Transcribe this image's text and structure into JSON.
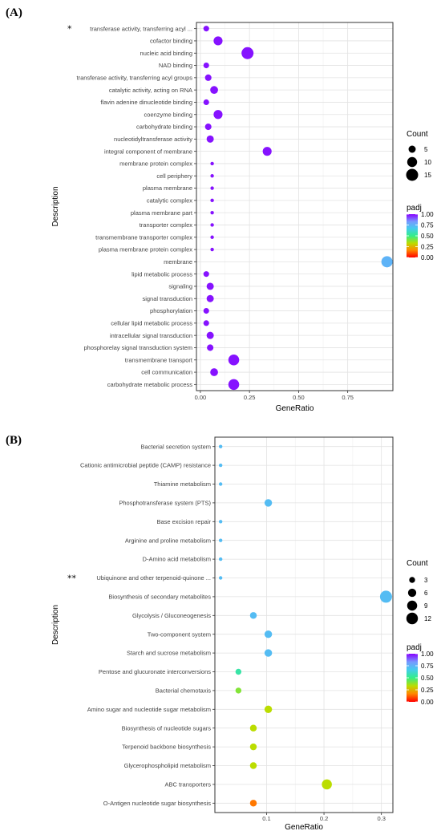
{
  "chart_data": [
    {
      "panel_label": "(A)",
      "type": "scatter",
      "xlabel": "GeneRatio",
      "ylabel": "Description",
      "xlim": [
        -0.02,
        0.98
      ],
      "xticks": [
        0.0,
        0.25,
        0.5,
        0.75
      ],
      "xtick_labels": [
        "0.00",
        "0.25",
        "0.50",
        "0.75"
      ],
      "grid": true,
      "legend_position": "right",
      "size_legend": {
        "title": "Count",
        "values": [
          5,
          10,
          15
        ],
        "labels": [
          "5",
          "10",
          "15"
        ]
      },
      "color_legend": {
        "title": "padj",
        "range": [
          0,
          1
        ],
        "tick_values": [
          1.0,
          0.75,
          0.5,
          0.25,
          0.0
        ],
        "tick_labels": [
          "1.00",
          "0.75",
          "0.50",
          "0.25",
          "0.00"
        ]
      },
      "points": [
        {
          "label": "transferase activity, transferring acyl ...",
          "marker": "*",
          "x": 0.03,
          "count": 3,
          "padj": 0.98
        },
        {
          "label": "cofactor binding",
          "marker": "",
          "x": 0.09,
          "count": 8,
          "padj": 0.98
        },
        {
          "label": "nucleic acid binding",
          "marker": "",
          "x": 0.24,
          "count": 15,
          "padj": 0.98
        },
        {
          "label": "NAD binding",
          "marker": "",
          "x": 0.03,
          "count": 3,
          "padj": 0.98
        },
        {
          "label": "transferase activity, transferring acyl groups",
          "marker": "",
          "x": 0.04,
          "count": 4,
          "padj": 0.98
        },
        {
          "label": "catalytic activity, acting on RNA",
          "marker": "",
          "x": 0.07,
          "count": 6,
          "padj": 0.98
        },
        {
          "label": "flavin adenine dinucleotide binding",
          "marker": "",
          "x": 0.03,
          "count": 3,
          "padj": 0.98
        },
        {
          "label": "coenzyme binding",
          "marker": "",
          "x": 0.09,
          "count": 8,
          "padj": 0.98
        },
        {
          "label": "carbohydrate binding",
          "marker": "",
          "x": 0.04,
          "count": 4,
          "padj": 0.98
        },
        {
          "label": "nucleotidyltransferase activity",
          "marker": "",
          "x": 0.05,
          "count": 5,
          "padj": 0.98
        },
        {
          "label": "integral component of membrane",
          "marker": "",
          "x": 0.34,
          "count": 8,
          "padj": 0.98
        },
        {
          "label": "membrane protein complex",
          "marker": "",
          "x": 0.06,
          "count": 1,
          "padj": 0.98
        },
        {
          "label": "cell periphery",
          "marker": "",
          "x": 0.06,
          "count": 1,
          "padj": 0.98
        },
        {
          "label": "plasma membrane",
          "marker": "",
          "x": 0.06,
          "count": 1,
          "padj": 0.98
        },
        {
          "label": "catalytic complex",
          "marker": "",
          "x": 0.06,
          "count": 1,
          "padj": 0.98
        },
        {
          "label": "plasma membrane part",
          "marker": "",
          "x": 0.06,
          "count": 1,
          "padj": 0.98
        },
        {
          "label": "transporter complex",
          "marker": "",
          "x": 0.06,
          "count": 1,
          "padj": 0.98
        },
        {
          "label": "transmembrane transporter complex",
          "marker": "",
          "x": 0.06,
          "count": 1,
          "padj": 0.98
        },
        {
          "label": "plasma membrane protein complex",
          "marker": "",
          "x": 0.06,
          "count": 1,
          "padj": 0.98
        },
        {
          "label": "membrane",
          "marker": "",
          "x": 0.95,
          "count": 13,
          "padj": 0.75
        },
        {
          "label": "lipid metabolic process",
          "marker": "",
          "x": 0.03,
          "count": 3,
          "padj": 0.98
        },
        {
          "label": "signaling",
          "marker": "",
          "x": 0.05,
          "count": 5,
          "padj": 0.98
        },
        {
          "label": "signal transduction",
          "marker": "",
          "x": 0.05,
          "count": 5,
          "padj": 0.98
        },
        {
          "label": "phosphorylation",
          "marker": "",
          "x": 0.03,
          "count": 3,
          "padj": 0.98
        },
        {
          "label": "cellular lipid metabolic process",
          "marker": "",
          "x": 0.03,
          "count": 3,
          "padj": 0.98
        },
        {
          "label": "intracellular signal transduction",
          "marker": "",
          "x": 0.05,
          "count": 5,
          "padj": 0.98
        },
        {
          "label": "phosphorelay signal transduction system",
          "marker": "",
          "x": 0.05,
          "count": 4,
          "padj": 0.98
        },
        {
          "label": "transmembrane transport",
          "marker": "",
          "x": 0.17,
          "count": 12,
          "padj": 0.98
        },
        {
          "label": "cell communication",
          "marker": "",
          "x": 0.07,
          "count": 6,
          "padj": 0.98
        },
        {
          "label": "carbohydrate metabolic process",
          "marker": "",
          "x": 0.17,
          "count": 12,
          "padj": 0.98
        }
      ]
    },
    {
      "panel_label": "(B)",
      "type": "scatter",
      "xlabel": "GeneRatio",
      "ylabel": "Description",
      "xlim": [
        0.01,
        0.32
      ],
      "xticks": [
        0.1,
        0.2,
        0.3
      ],
      "xtick_labels": [
        "0.1",
        "0.2",
        "0.3"
      ],
      "grid": true,
      "legend_position": "right",
      "size_legend": {
        "title": "Count",
        "values": [
          3,
          6,
          9,
          12
        ],
        "labels": [
          "3",
          "6",
          "9",
          "12"
        ]
      },
      "color_legend": {
        "title": "padj",
        "range": [
          0,
          1
        ],
        "tick_values": [
          1.0,
          0.75,
          0.5,
          0.25,
          0.0
        ],
        "tick_labels": [
          "1.00",
          "0.75",
          "0.50",
          "0.25",
          "0.00"
        ]
      },
      "points": [
        {
          "label": "Bacterial secretion system",
          "marker": "",
          "x": 0.02,
          "count": 1,
          "padj": 0.72
        },
        {
          "label": "Cationic antimicrobial peptide (CAMP) resistance",
          "marker": "",
          "x": 0.02,
          "count": 1,
          "padj": 0.72
        },
        {
          "label": "Thiamine metabolism",
          "marker": "",
          "x": 0.02,
          "count": 1,
          "padj": 0.72
        },
        {
          "label": "Phosphotransferase system (PTS)",
          "marker": "",
          "x": 0.103,
          "count": 5,
          "padj": 0.72
        },
        {
          "label": "Base excision repair",
          "marker": "",
          "x": 0.02,
          "count": 1,
          "padj": 0.72
        },
        {
          "label": "Arginine and proline metabolism",
          "marker": "",
          "x": 0.02,
          "count": 1,
          "padj": 0.72
        },
        {
          "label": "D-Amino acid metabolism",
          "marker": "",
          "x": 0.02,
          "count": 1,
          "padj": 0.72
        },
        {
          "label": "Ubiquinone and other terpenoid-quinone ...",
          "marker": "**",
          "x": 0.02,
          "count": 1,
          "padj": 0.72
        },
        {
          "label": "Biosynthesis of secondary metabolites",
          "marker": "",
          "x": 0.308,
          "count": 13,
          "padj": 0.72
        },
        {
          "label": "Glycolysis / Gluconeogenesis",
          "marker": "",
          "x": 0.077,
          "count": 4,
          "padj": 0.72
        },
        {
          "label": "Two-component system",
          "marker": "",
          "x": 0.103,
          "count": 5,
          "padj": 0.72
        },
        {
          "label": "Starch and sucrose metabolism",
          "marker": "",
          "x": 0.103,
          "count": 5,
          "padj": 0.72
        },
        {
          "label": "Pentose and glucuronate interconversions",
          "marker": "",
          "x": 0.051,
          "count": 3,
          "padj": 0.55
        },
        {
          "label": "Bacterial chemotaxis",
          "marker": "",
          "x": 0.051,
          "count": 3,
          "padj": 0.4
        },
        {
          "label": "Amino sugar and nucleotide sugar metabolism",
          "marker": "",
          "x": 0.103,
          "count": 5,
          "padj": 0.33
        },
        {
          "label": "Biosynthesis of nucleotide sugars",
          "marker": "",
          "x": 0.077,
          "count": 4,
          "padj": 0.33
        },
        {
          "label": "Terpenoid backbone biosynthesis",
          "marker": "",
          "x": 0.077,
          "count": 4,
          "padj": 0.33
        },
        {
          "label": "Glycerophospholipid metabolism",
          "marker": "",
          "x": 0.077,
          "count": 4,
          "padj": 0.33
        },
        {
          "label": "ABC transporters",
          "marker": "",
          "x": 0.205,
          "count": 9,
          "padj": 0.33
        },
        {
          "label": "O-Antigen nucleotide sugar biosynthesis",
          "marker": "",
          "x": 0.077,
          "count": 4,
          "padj": 0.15
        }
      ]
    }
  ]
}
